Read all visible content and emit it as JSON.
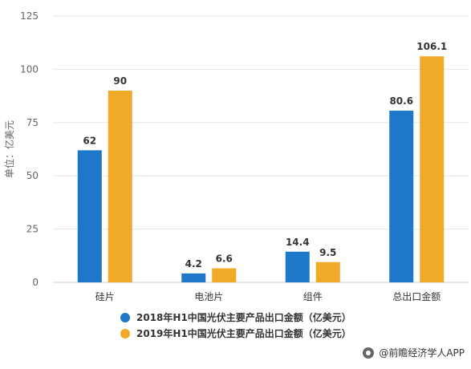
{
  "chart_data": {
    "type": "bar",
    "categories": [
      "硅片",
      "电池片",
      "组件",
      "总出口金额"
    ],
    "series": [
      {
        "name": "2018年H1中国光伏主要产品出口金额（亿美元）",
        "color": "#1f77c9",
        "values": [
          62,
          4.2,
          14.4,
          80.6
        ],
        "labels": [
          "62",
          "4.2",
          "14.4",
          "80.6"
        ]
      },
      {
        "name": "2019年H1中国光伏主要产品出口金额（亿美元）",
        "color": "#f0a928",
        "values": [
          90,
          6.6,
          9.5,
          106.1
        ],
        "labels": [
          "90",
          "6.6",
          "9.5",
          "106.1"
        ]
      }
    ],
    "ylabel": "单位：亿美元",
    "ylim": [
      0,
      125
    ],
    "yticks": [
      0,
      25,
      50,
      75,
      100,
      125
    ],
    "grid": true,
    "legend_position": "bottom"
  },
  "footer": {
    "credit": "@前瞻经济学人APP"
  }
}
